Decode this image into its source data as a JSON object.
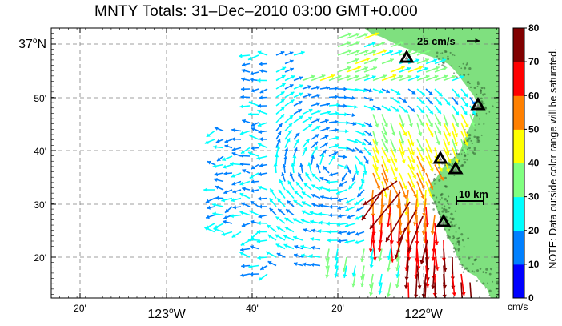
{
  "title": "MNTY Totals: 31–Dec–2010 03:00 GMT+0.000",
  "lat_labels": [
    {
      "lat": "37N",
      "text": "37",
      "deg": "o",
      "hem": "N",
      "major": true
    },
    {
      "lat": "50'",
      "text": "50'",
      "major": false
    },
    {
      "lat": "40'",
      "text": "40'",
      "major": false
    },
    {
      "lat": "30'",
      "text": "30'",
      "major": false
    },
    {
      "lat": "20'",
      "text": "20'",
      "major": false
    }
  ],
  "lon_labels": [
    {
      "text": "20'",
      "major": false
    },
    {
      "text": "123",
      "deg": "o",
      "hem": "W",
      "major": true
    },
    {
      "text": "40'",
      "major": false
    },
    {
      "text": "20'",
      "major": false
    },
    {
      "text": "122",
      "deg": "o",
      "hem": "W",
      "major": true
    }
  ],
  "colorbar": {
    "ticks": [
      "0",
      "10",
      "20",
      "30",
      "40",
      "50",
      "60",
      "70",
      "80"
    ],
    "unit": "cm/s",
    "colors": [
      "#0000ff",
      "#0080ff",
      "#00ffff",
      "#80ff80",
      "#ffff00",
      "#ff8000",
      "#ff0000",
      "#800000"
    ]
  },
  "note": "NOTE: Data outside color range will be saturated.",
  "reference_vector_label": "25 cm/s",
  "scale_bar_label": "10 km",
  "land_color": "#7fe07f",
  "station_marker": "triangle"
}
